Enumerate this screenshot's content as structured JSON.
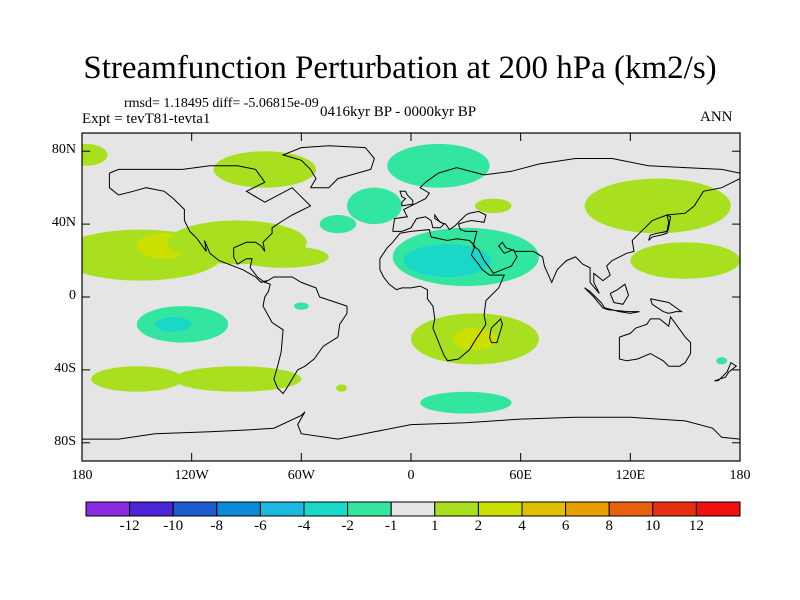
{
  "title": "Streamfunction Perturbation at 200 hPa (km2/s)",
  "stats": "rmsd= 1.18495 diff= -5.06815e-09",
  "experiment": "Expt = tevT81-tevta1",
  "period": "0416kyr BP - 0000kyr BP",
  "season": "ANN",
  "background_color": "#e5e5e5",
  "y_axis": {
    "ticks": [
      {
        "value": 80,
        "label": "80N"
      },
      {
        "value": 40,
        "label": "40N"
      },
      {
        "value": 0,
        "label": "0"
      },
      {
        "value": -40,
        "label": "40S"
      },
      {
        "value": -80,
        "label": "80S"
      }
    ]
  },
  "x_axis": {
    "ticks": [
      {
        "value": -180,
        "label": "180"
      },
      {
        "value": -120,
        "label": "120W"
      },
      {
        "value": -60,
        "label": "60W"
      },
      {
        "value": 0,
        "label": "0"
      },
      {
        "value": 60,
        "label": "60E"
      },
      {
        "value": 120,
        "label": "120E"
      },
      {
        "value": 180,
        "label": "180"
      }
    ]
  },
  "colorbar": {
    "labels": [
      "-12",
      "-10",
      "-8",
      "-6",
      "-4",
      "-2",
      "-1",
      "1",
      "2",
      "4",
      "6",
      "8",
      "10",
      "12"
    ],
    "colors": [
      "#8a2be2",
      "#4b24d8",
      "#1e5ad0",
      "#0a8ad8",
      "#1cb8e0",
      "#1ad8c8",
      "#32e6a0",
      "#e5e5e5",
      "#a8e020",
      "#cce000",
      "#e0c000",
      "#e8a000",
      "#e86010",
      "#e83010",
      "#f01010"
    ]
  },
  "contour_regions": [
    {
      "id": "pacific-subtrop-north",
      "lon": -148,
      "lat": 23,
      "rlon": 45,
      "rlat": 14,
      "level": "2"
    },
    {
      "id": "pacific-subtrop-north-core",
      "lon": -135,
      "lat": 28,
      "rlon": 15,
      "rlat": 7,
      "level": "4"
    },
    {
      "id": "north-america-east",
      "lon": -95,
      "lat": 30,
      "rlon": 38,
      "rlat": 12,
      "level": "2"
    },
    {
      "id": "caribbean",
      "lon": -70,
      "lat": 22,
      "rlon": 25,
      "rlat": 6,
      "level": "2"
    },
    {
      "id": "west-pacific-subtrop",
      "lon": 150,
      "lat": 20,
      "rlon": 30,
      "rlat": 10,
      "level": "2"
    },
    {
      "id": "north-pacific-arc",
      "lon": 135,
      "lat": 50,
      "rlon": 40,
      "rlat": 15,
      "level": "2"
    },
    {
      "id": "canada-north",
      "lon": -80,
      "lat": 70,
      "rlon": 28,
      "rlat": 10,
      "level": "2"
    },
    {
      "id": "alaska",
      "lon": -178,
      "lat": 78,
      "rlon": 12,
      "rlat": 6,
      "level": "2"
    },
    {
      "id": "scandinavia",
      "lon": 15,
      "lat": 72,
      "rlon": 28,
      "rlat": 12,
      "level": "-1"
    },
    {
      "id": "europe-south",
      "lon": -20,
      "lat": 50,
      "rlon": 15,
      "rlat": 10,
      "level": "-1"
    },
    {
      "id": "north-africa",
      "lon": 30,
      "lat": 22,
      "rlon": 40,
      "rlat": 16,
      "level": "-1"
    },
    {
      "id": "north-africa-core",
      "lon": 20,
      "lat": 20,
      "rlon": 24,
      "rlat": 9,
      "level": "-2"
    },
    {
      "id": "south-pacific",
      "lon": -125,
      "lat": -15,
      "rlon": 25,
      "rlat": 10,
      "level": "-1"
    },
    {
      "id": "south-pacific-core",
      "lon": -130,
      "lat": -15,
      "rlon": 10,
      "rlat": 4,
      "level": "-2"
    },
    {
      "id": "south-africa",
      "lon": 35,
      "lat": -23,
      "rlon": 35,
      "rlat": 14,
      "level": "2"
    },
    {
      "id": "south-africa-core",
      "lon": 35,
      "lat": -23,
      "rlon": 12,
      "rlat": 6,
      "level": "4"
    },
    {
      "id": "southern-ocean-south-america",
      "lon": -95,
      "lat": -45,
      "rlon": 35,
      "rlat": 7,
      "level": "2"
    },
    {
      "id": "southern-ocean-atlantic",
      "lon": 30,
      "lat": -58,
      "rlon": 25,
      "rlat": 6,
      "level": "-1"
    },
    {
      "id": "south-pacific-west",
      "lon": -150,
      "lat": -45,
      "rlon": 25,
      "rlat": 7,
      "level": "2"
    },
    {
      "id": "north-atlantic-west",
      "lon": -40,
      "lat": 40,
      "rlon": 10,
      "rlat": 5,
      "level": "-1"
    },
    {
      "id": "eastern-europe",
      "lon": 45,
      "lat": 50,
      "rlon": 10,
      "rlat": 4,
      "level": "2"
    },
    {
      "id": "amazon-spot",
      "lon": -60,
      "lat": -5,
      "rlon": 4,
      "rlat": 2,
      "level": "-1"
    },
    {
      "id": "atlantic-spot",
      "lon": -38,
      "lat": -50,
      "rlon": 3,
      "rlat": 2,
      "level": "2"
    },
    {
      "id": "indian-ocean-spot",
      "lon": 170,
      "lat": -35,
      "rlon": 3,
      "rlat": 2,
      "level": "-1"
    }
  ]
}
